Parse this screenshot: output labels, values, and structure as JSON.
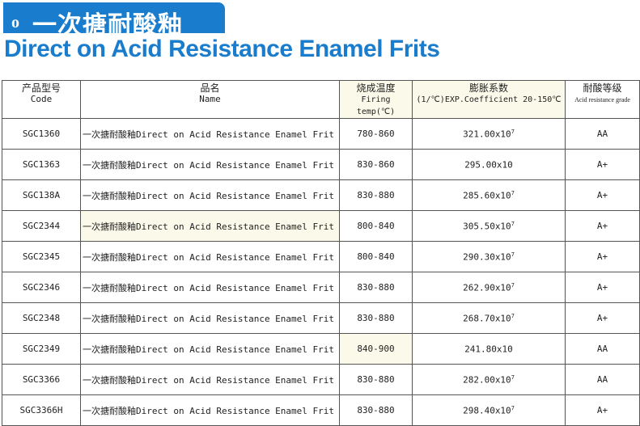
{
  "header": {
    "bullet": "o",
    "title_cn": "一次搪耐酸釉",
    "title_en": "Direct on Acid Resistance Enamel Frits"
  },
  "table": {
    "columns": [
      {
        "cn": "产品型号",
        "en": "Code"
      },
      {
        "cn": "品名",
        "en": "Name"
      },
      {
        "cn": "烧成温度",
        "en": "Firing temp(℃)"
      },
      {
        "cn": "膨胀系数",
        "en": "(1/℃)EXP.Coefficient 20-150℃"
      },
      {
        "cn": "耐酸等级",
        "en": "Acid resistance grade"
      }
    ],
    "rows": [
      {
        "code": "SGC1360",
        "name": "一次搪耐酸釉Direct on Acid Resistance Enamel Frit",
        "temp": "780-860",
        "coef": "321.00x10",
        "exp": "7",
        "grade": "AA"
      },
      {
        "code": "SGC1363",
        "name": "一次搪耐酸釉Direct on Acid Resistance Enamel Frit",
        "temp": "830-860",
        "coef": "295.00x10",
        "exp": "",
        "grade": "A+"
      },
      {
        "code": "SGC138A",
        "name": "一次搪耐酸釉Direct on Acid Resistance Enamel Frit",
        "temp": "830-880",
        "coef": "285.60x10",
        "exp": "7",
        "grade": "A+"
      },
      {
        "code": "SGC2344",
        "name": "一次搪耐酸釉Direct on Acid Resistance Enamel Frit",
        "temp": "800-840",
        "coef": "305.50x10",
        "exp": "7",
        "grade": "A+"
      },
      {
        "code": "SGC2345",
        "name": "一次搪耐酸釉Direct on Acid Resistance Enamel Frit",
        "temp": "800-840",
        "coef": "290.30x10",
        "exp": "7",
        "grade": "A+"
      },
      {
        "code": "SGC2346",
        "name": "一次搪耐酸釉Direct on Acid Resistance Enamel Frit",
        "temp": "830-880",
        "coef": "262.90x10",
        "exp": "7",
        "grade": "A+"
      },
      {
        "code": "SGC2348",
        "name": "一次搪耐酸釉Direct on Acid Resistance Enamel Frit",
        "temp": "830-880",
        "coef": "268.70x10",
        "exp": "7",
        "grade": "A+"
      },
      {
        "code": "SGC2349",
        "name": "一次搪耐酸釉Direct on Acid Resistance Enamel Frit",
        "temp": "840-900",
        "coef": "241.80x10",
        "exp": "",
        "grade": "AA"
      },
      {
        "code": "SGC3366",
        "name": "一次搪耐酸釉Direct on Acid Resistance Enamel Frit",
        "temp": "830-880",
        "coef": "282.00x10",
        "exp": "7",
        "grade": "AA"
      },
      {
        "code": "SGC3366H",
        "name": "一次搪耐酸釉Direct on Acid Resistance Enamel Frit",
        "temp": "830-880",
        "coef": "298.40x10",
        "exp": "7",
        "grade": "A+"
      }
    ]
  }
}
